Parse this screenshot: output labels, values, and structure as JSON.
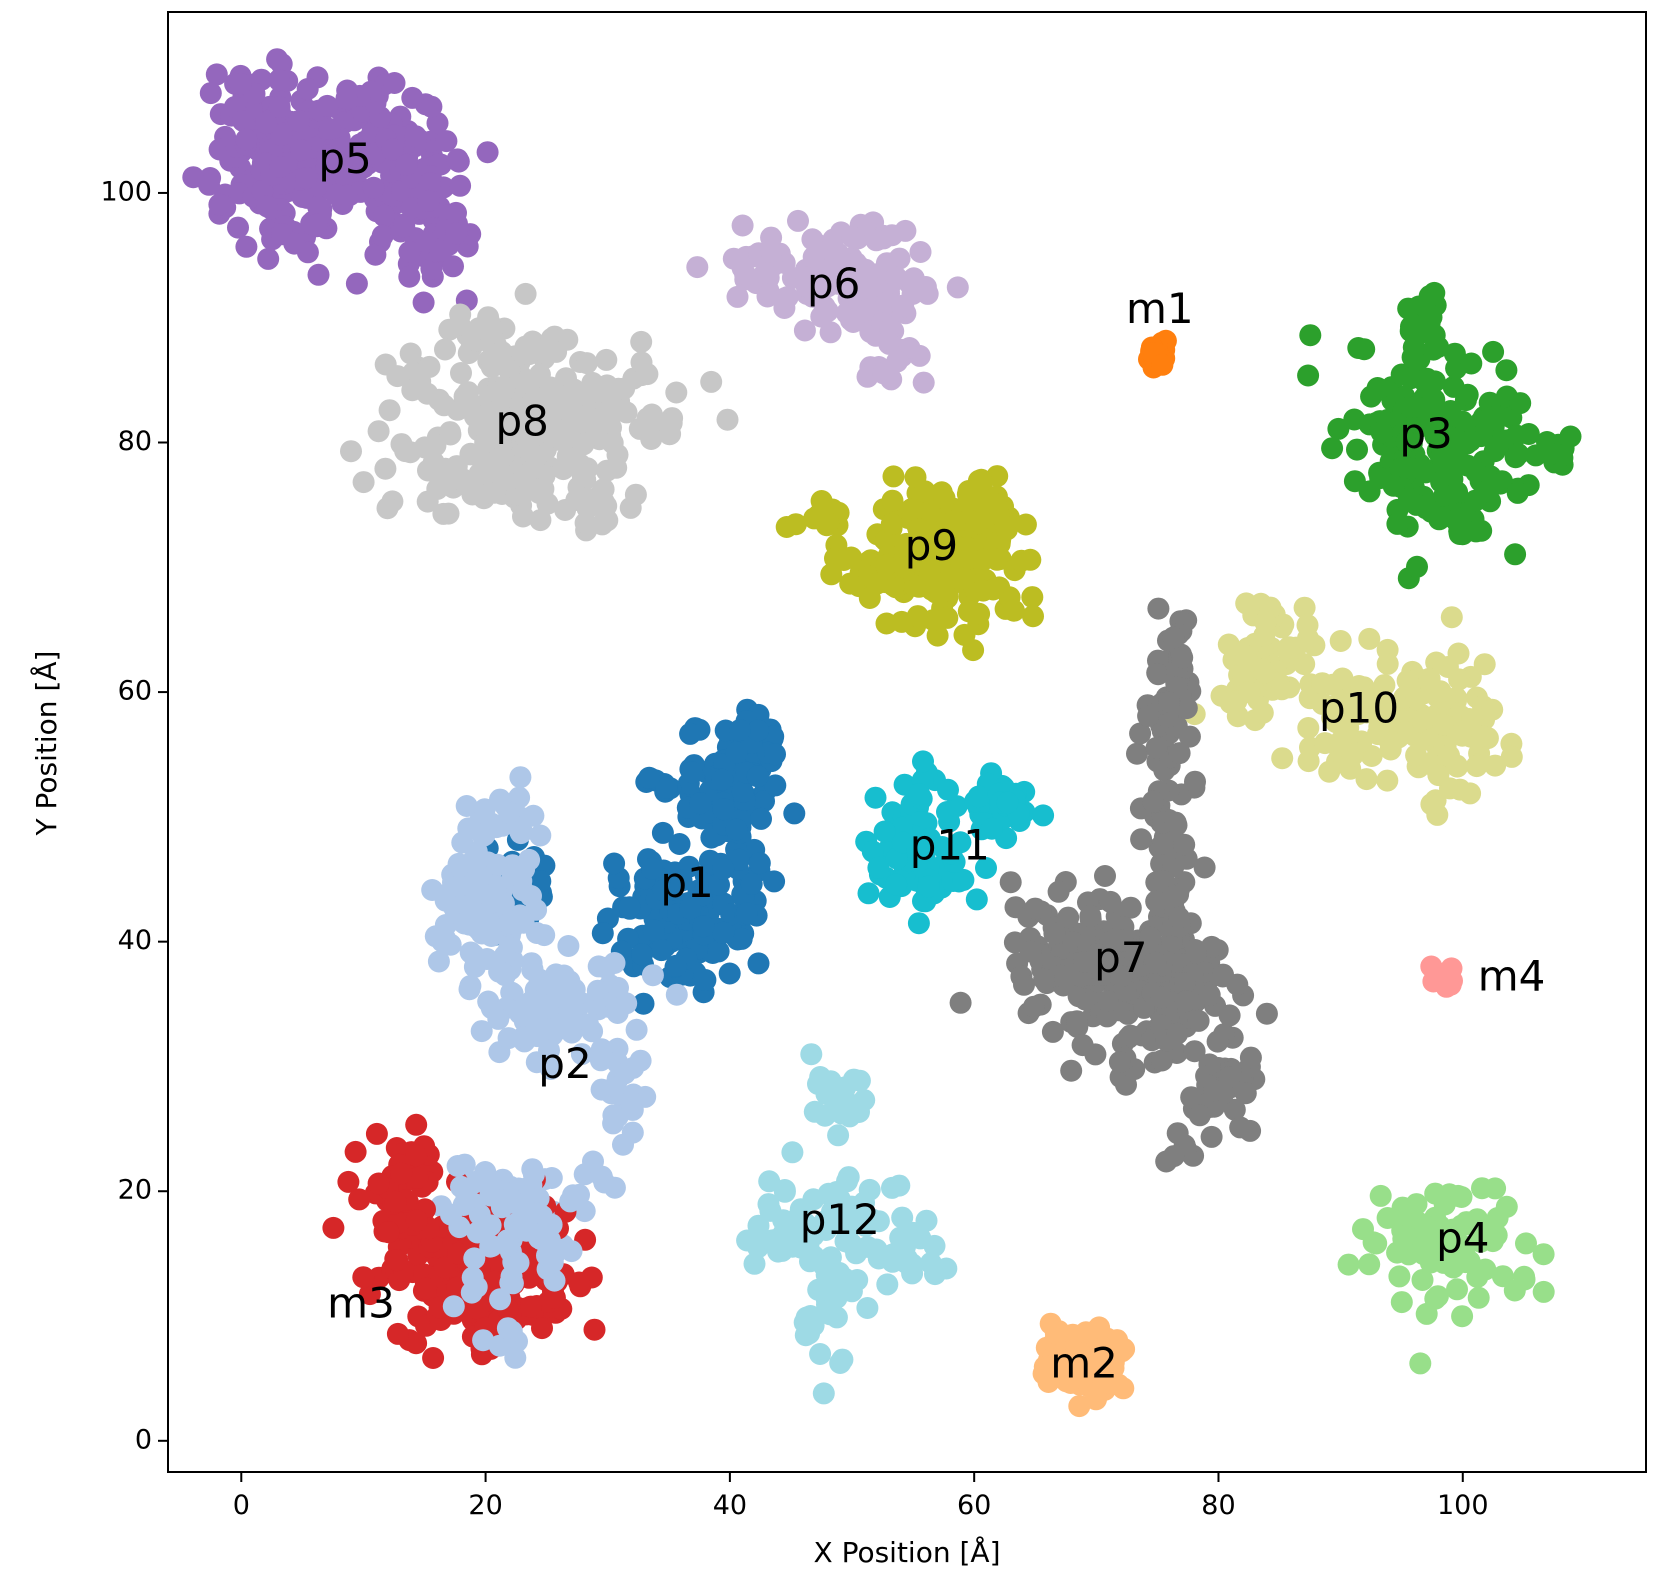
{
  "chart_data": {
    "type": "scatter",
    "title": "",
    "xlabel": "X Position [Å]",
    "ylabel": "Y Position [Å]",
    "xlim": [
      -6,
      115
    ],
    "ylim": [
      -2.5,
      114.5
    ],
    "xticks": [
      0,
      20,
      40,
      60,
      80,
      100
    ],
    "yticks": [
      0,
      20,
      40,
      60,
      80,
      100
    ],
    "grid": false,
    "legend": "none",
    "series": [
      {
        "name": "p5",
        "color": "#9467bd",
        "label": "p5",
        "label_pos": [
          8.5,
          102.5
        ],
        "blobs": [
          [
            4,
            104,
            4,
            4,
            160
          ],
          [
            12,
            102,
            4,
            4,
            110
          ],
          [
            3,
            99,
            3,
            3,
            45
          ],
          [
            16,
            97,
            2,
            4,
            35
          ],
          [
            0,
            108,
            1,
            1,
            3
          ],
          [
            11,
            108,
            2,
            1,
            6
          ],
          [
            -1,
            99,
            0.6,
            0.6,
            2
          ]
        ]
      },
      {
        "name": "p6",
        "color": "#c5b0d5",
        "label": "p6",
        "label_pos": [
          48.5,
          92.5
        ],
        "blobs": [
          [
            44,
            94,
            4,
            2,
            55
          ],
          [
            52,
            92,
            3.5,
            3,
            70
          ],
          [
            51,
            96.5,
            2,
            0.6,
            14
          ],
          [
            53,
            87,
            1.5,
            1.5,
            10
          ]
        ]
      },
      {
        "name": "m1",
        "color": "#ff7f0e",
        "label": "m1",
        "label_pos": [
          75.2,
          90.5
        ],
        "blobs": [
          [
            75,
            87,
            0.5,
            0.6,
            30
          ]
        ]
      },
      {
        "name": "p8",
        "color": "#c7c7c7",
        "label": "p8",
        "label_pos": [
          23,
          81.5
        ],
        "blobs": [
          [
            23,
            82,
            7,
            4.5,
            230
          ],
          [
            22,
            88,
            4,
            1.2,
            25
          ],
          [
            20,
            76,
            4,
            1.5,
            30
          ],
          [
            29,
            75,
            2,
            1.5,
            15
          ],
          [
            34,
            81,
            1,
            1,
            6
          ]
        ]
      },
      {
        "name": "p3",
        "color": "#2ca02c",
        "label": "p3",
        "label_pos": [
          97,
          80.5
        ],
        "blobs": [
          [
            98,
            80,
            5,
            5,
            180
          ],
          [
            97,
            90,
            1,
            1.5,
            18
          ],
          [
            108,
            79,
            1,
            0.8,
            12
          ],
          [
            100,
            73,
            1.5,
            1,
            10
          ]
        ]
      },
      {
        "name": "p9",
        "color": "#bcbd22",
        "label": "p9",
        "label_pos": [
          56.5,
          71.5
        ],
        "blobs": [
          [
            57,
            71,
            5,
            3.5,
            180
          ],
          [
            47,
            74,
            2,
            0.8,
            10
          ],
          [
            61,
            75,
            2,
            1.5,
            15
          ]
        ]
      },
      {
        "name": "p10",
        "color": "#dbdb8d",
        "label": "p10",
        "label_pos": [
          91.5,
          58.5
        ],
        "blobs": [
          [
            84,
            62,
            3,
            2.5,
            60
          ],
          [
            93,
            58,
            5,
            2.5,
            90
          ],
          [
            99,
            57,
            2.5,
            4,
            60
          ],
          [
            84,
            66,
            2,
            1,
            10
          ]
        ]
      },
      {
        "name": "p7",
        "color": "#7f7f7f",
        "label": "p7",
        "label_pos": [
          72,
          38.5
        ],
        "blobs": [
          [
            70,
            38,
            5,
            4,
            150
          ],
          [
            76,
            36,
            3,
            4,
            110
          ],
          [
            76,
            50,
            1.5,
            6,
            60
          ],
          [
            76,
            61,
            1.5,
            3,
            35
          ],
          [
            80,
            28,
            2,
            2.5,
            35
          ],
          [
            77,
            23,
            1.5,
            1.5,
            6
          ]
        ]
      },
      {
        "name": "p11",
        "color": "#17becf",
        "label": "p11",
        "label_pos": [
          58,
          47.5
        ],
        "blobs": [
          [
            55,
            48,
            2.5,
            3,
            80
          ],
          [
            62,
            51,
            2,
            1.5,
            40
          ],
          [
            58,
            45,
            2,
            1.5,
            25
          ]
        ]
      },
      {
        "name": "p1",
        "color": "#1f77b4",
        "label": "p1",
        "label_pos": [
          36.5,
          44.5
        ],
        "blobs": [
          [
            36,
            42,
            4,
            3.5,
            130
          ],
          [
            40,
            52,
            3,
            4,
            100
          ],
          [
            42,
            56,
            1.5,
            1.5,
            25
          ],
          [
            23,
            44,
            2,
            3,
            30
          ],
          [
            34,
            53,
            1.5,
            1,
            8
          ]
        ]
      },
      {
        "name": "p2",
        "color": "#aec7e8",
        "label": "p2",
        "label_pos": [
          26.5,
          30
        ],
        "blobs": [
          [
            20,
            43,
            3,
            4.5,
            110
          ],
          [
            26,
            35,
            4,
            2.5,
            80
          ],
          [
            31,
            28,
            1.5,
            4,
            25
          ],
          [
            22,
            18,
            3,
            3,
            50
          ],
          [
            22,
            50,
            1.5,
            1.5,
            15
          ],
          [
            29,
            22,
            1.5,
            1.5,
            6
          ]
        ]
      },
      {
        "name": "m3",
        "color": "#d62728",
        "label": "m3",
        "label_pos": [
          9.8,
          10.8
        ],
        "blobs": [
          [
            19,
            14,
            5,
            3.5,
            200
          ],
          [
            13,
            20,
            2,
            3,
            50
          ],
          [
            25,
            13,
            1.5,
            3,
            20
          ],
          [
            20,
            8,
            1,
            1,
            8
          ]
        ]
      },
      {
        "name": "p2_overlay",
        "color": "#aec7e8",
        "blobs": [
          [
            22,
            17,
            3,
            3.5,
            60
          ],
          [
            21,
            8,
            1.5,
            1,
            6
          ]
        ]
      },
      {
        "name": "p12",
        "color": "#9edae5",
        "label": "p12",
        "label_pos": [
          49,
          17.5
        ],
        "blobs": [
          [
            48,
            17,
            4,
            3,
            70
          ],
          [
            49,
            27,
            1.5,
            2,
            25
          ],
          [
            48,
            10,
            1.5,
            2.5,
            25
          ],
          [
            56,
            15,
            1.5,
            1.5,
            12
          ],
          [
            43,
            16,
            2,
            0.8,
            10
          ]
        ]
      },
      {
        "name": "p4",
        "color": "#98df8a",
        "label": "p4",
        "label_pos": [
          100,
          16
        ],
        "blobs": [
          [
            99,
            16,
            4.5,
            3.5,
            80
          ]
        ]
      },
      {
        "name": "m4",
        "color": "#ff9896",
        "label": "m4",
        "label_pos": [
          104,
          37
        ],
        "blobs": [
          [
            98.5,
            37,
            0.6,
            0.6,
            20
          ]
        ]
      },
      {
        "name": "m2",
        "color": "#ffbb78",
        "label": "m2",
        "label_pos": [
          69,
          6
        ],
        "blobs": [
          [
            69,
            6.5,
            2.3,
            1.8,
            90
          ]
        ]
      }
    ]
  }
}
